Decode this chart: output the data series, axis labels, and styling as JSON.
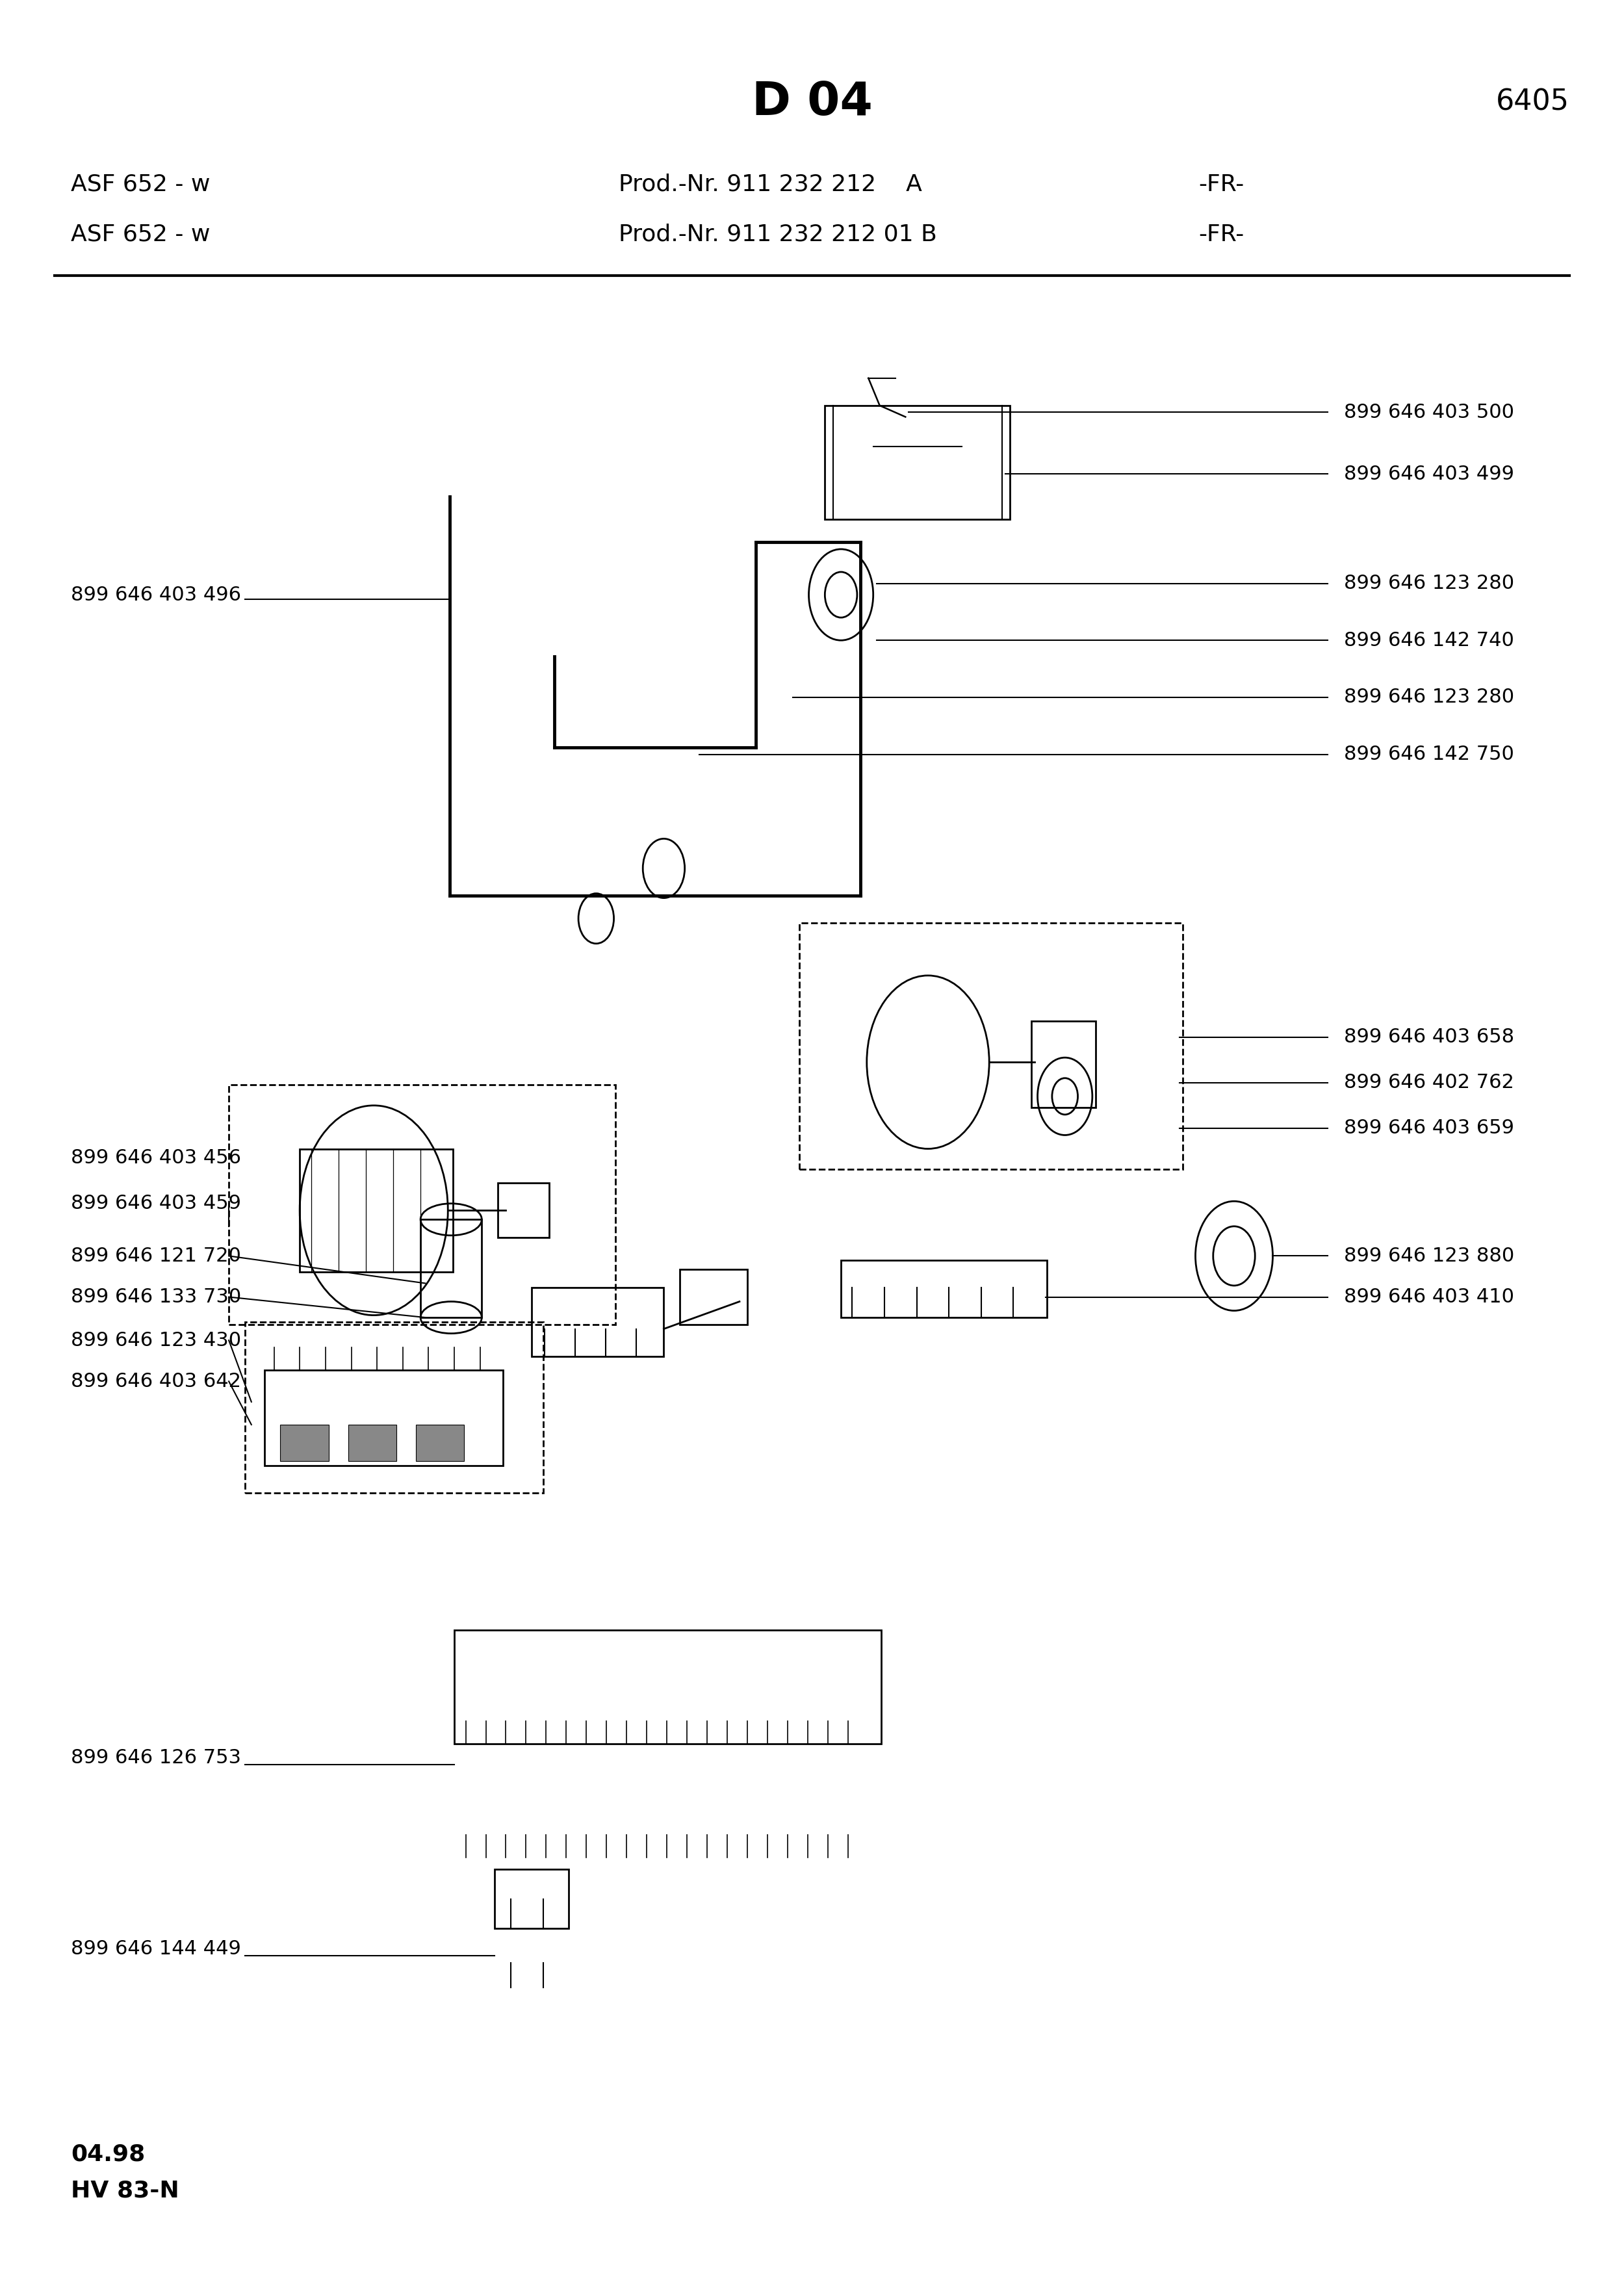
{
  "page_title": "D 04",
  "page_number": "6405",
  "model_lines": [
    {
      "model": "ASF 652 - w",
      "prod": "Prod.-Nr. 911 232 212    A",
      "region": "-FR-"
    },
    {
      "model": "ASF 652 - w",
      "prod": "Prod.-Nr. 911 232 212 01 B",
      "region": "-FR-"
    }
  ],
  "footer_line1": "04.98",
  "footer_line2": "HV 83-N",
  "bg_color": "#ffffff",
  "text_color": "#000000",
  "label_fontsize": 22,
  "title_fontsize": 52,
  "subtitle_fontsize": 26,
  "upper_right_labels": [
    {
      "id": "899 646 403 500",
      "yn": 0.178
    },
    {
      "id": "899 646 403 499",
      "yn": 0.205
    },
    {
      "id": "899 646 123 280",
      "yn": 0.253
    },
    {
      "id": "899 646 142 740",
      "yn": 0.278
    },
    {
      "id": "899 646 123 280",
      "yn": 0.303
    },
    {
      "id": "899 646 142 750",
      "yn": 0.328
    }
  ],
  "mid_right_box_labels": [
    {
      "id": "899 646 403 658",
      "yn": 0.452
    },
    {
      "id": "899 646 402 762",
      "yn": 0.472
    },
    {
      "id": "899 646 403 659",
      "yn": 0.492
    }
  ],
  "mid_left_labels": [
    {
      "id": "899 646 403 456",
      "yn": 0.505
    },
    {
      "id": "899 646 403 459",
      "yn": 0.525
    },
    {
      "id": "899 646 121 720",
      "yn": 0.548
    },
    {
      "id": "899 646 133 730",
      "yn": 0.566
    },
    {
      "id": "899 646 123 430",
      "yn": 0.585
    },
    {
      "id": "899 646 403 642",
      "yn": 0.603
    }
  ],
  "mid_right_labels": [
    {
      "id": "899 646 123 880",
      "yn": 0.548
    },
    {
      "id": "899 646 403 410",
      "yn": 0.566
    }
  ],
  "lower_labels": [
    {
      "id": "899 646 126 753",
      "yn": 0.762
    },
    {
      "id": "899 646 144 449",
      "yn": 0.85
    }
  ]
}
